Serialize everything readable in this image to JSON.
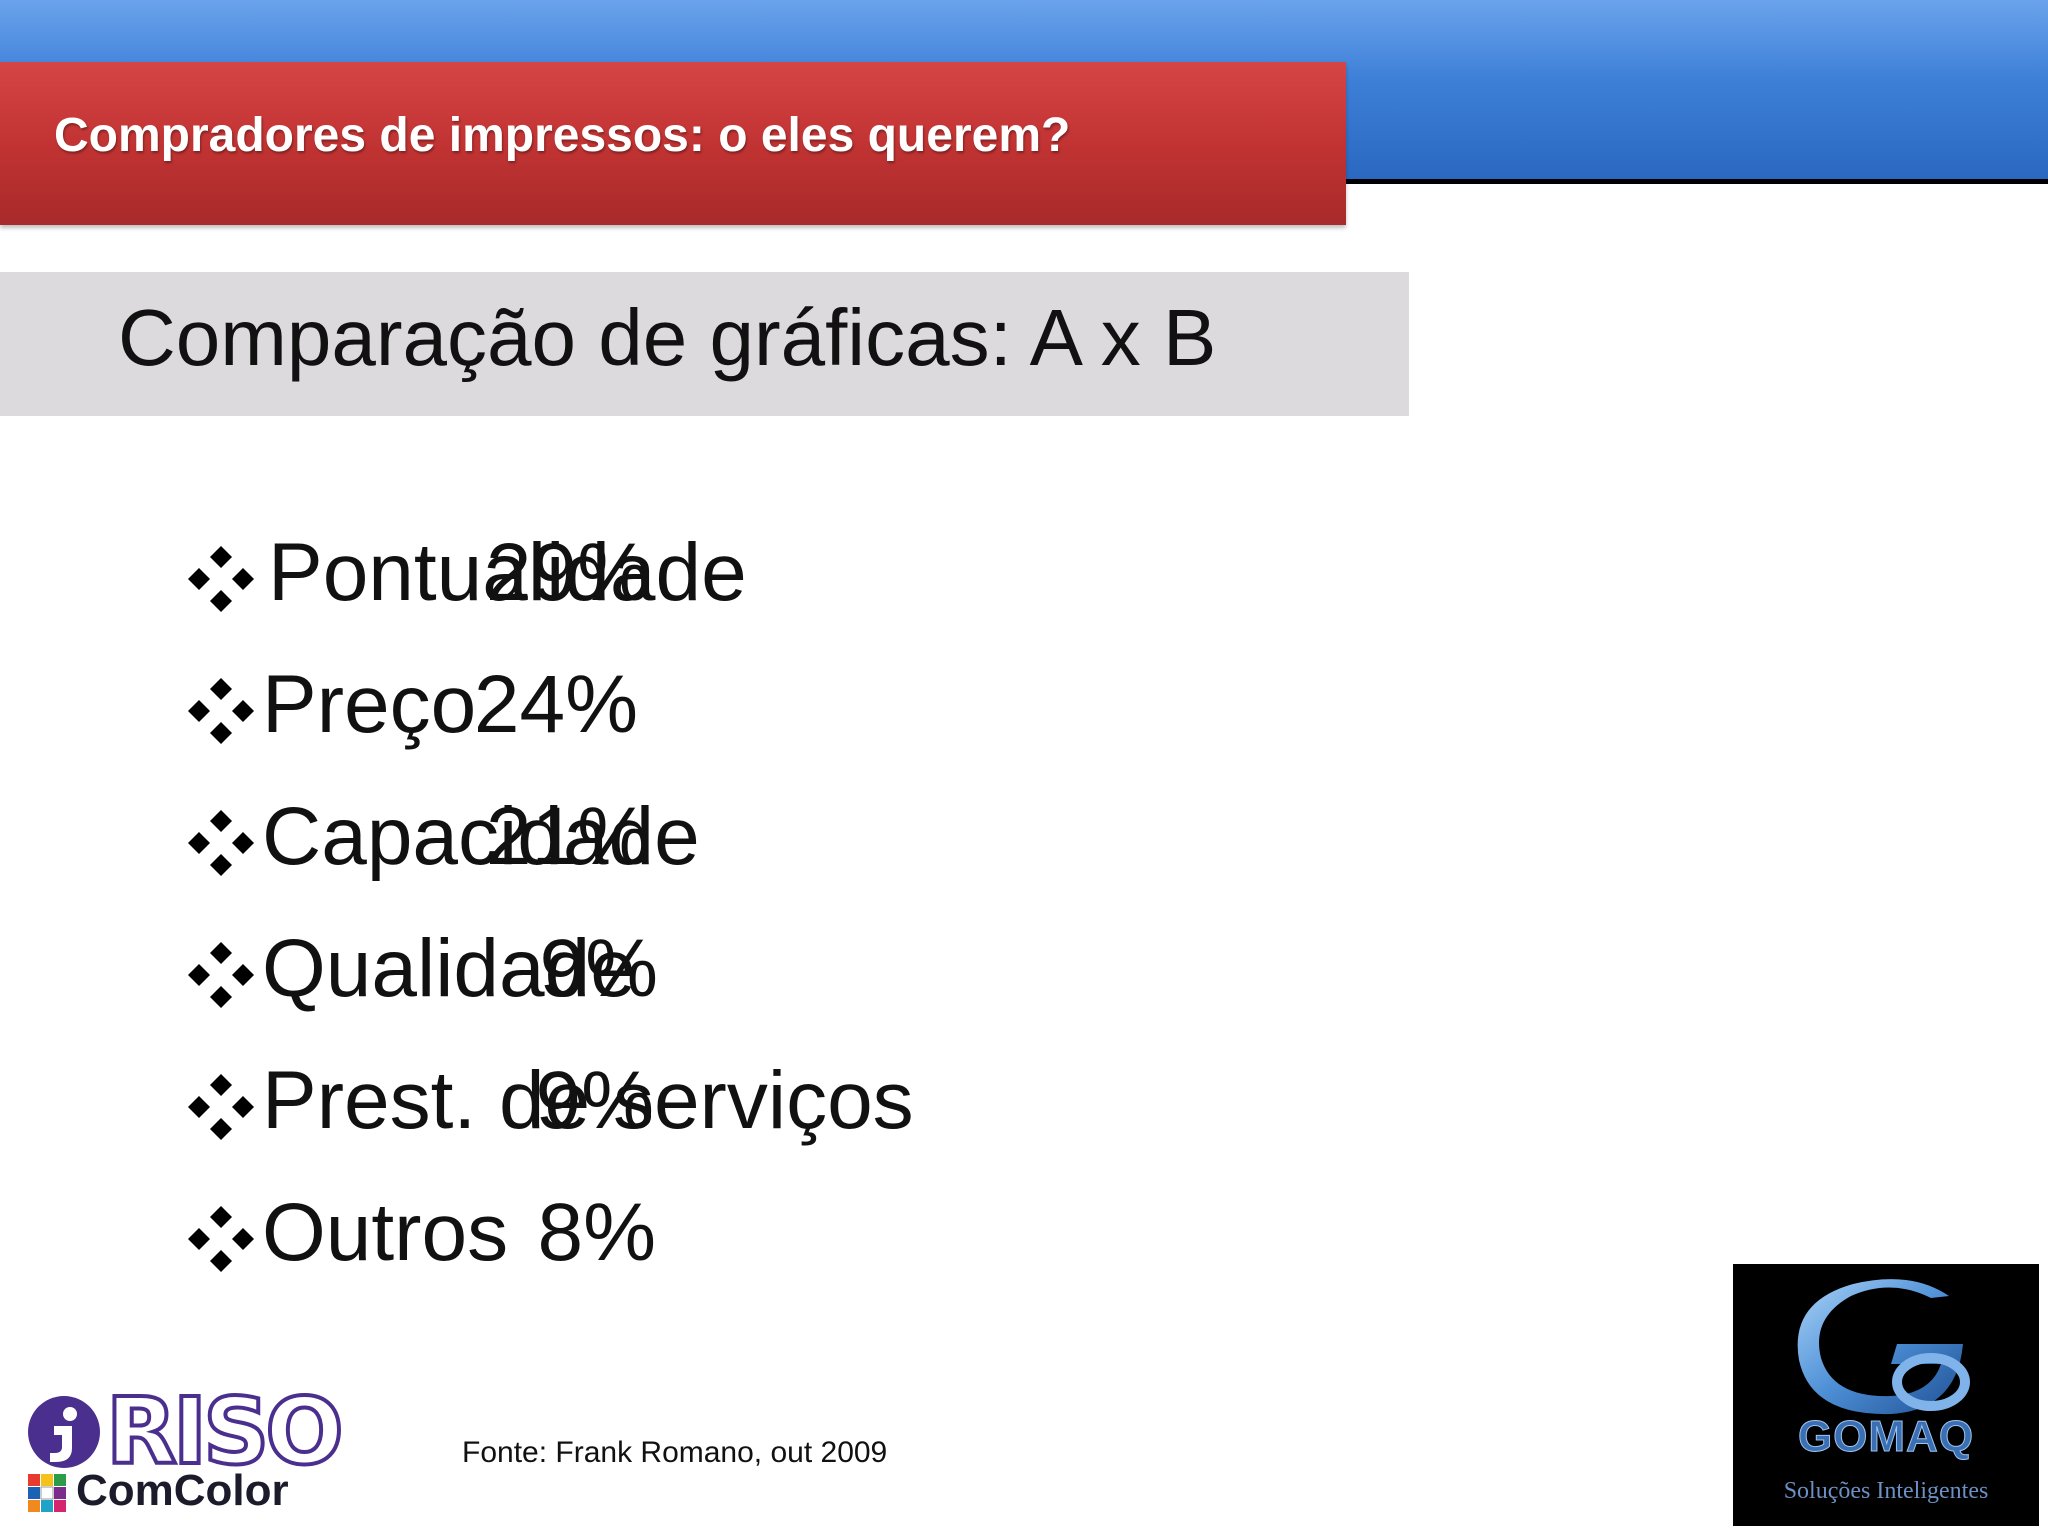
{
  "header": {
    "title": "Compradores de impressos: o eles querem?"
  },
  "subtitle": "Comparação de gráficas: A x B",
  "items": [
    {
      "label": " Pontualidade",
      "value": "29%"
    },
    {
      "label": "Preço",
      "value": "24%"
    },
    {
      "label": "Capacidade",
      "value": "21%"
    },
    {
      "label": "Qualidade",
      "value": "9%"
    },
    {
      "label": "Prest. de serviços",
      "value": "9%"
    },
    {
      "label": "Outros",
      "value": "8%"
    }
  ],
  "source": "Fonte: Frank Romano, out 2009",
  "logos": {
    "riso": {
      "name": "RISO",
      "product": "ComColor"
    },
    "gomaq": {
      "name": "GOMAQ",
      "tagline": "Soluções Inteligentes"
    }
  },
  "colors": {
    "top_bar": "#3d7fd7",
    "title_band": "#c23333",
    "subtitle_band": "#dcdadd"
  }
}
